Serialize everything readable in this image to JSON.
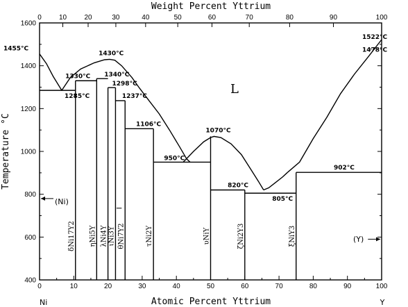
{
  "chart_data": {
    "type": "line",
    "title": "",
    "xlabel": "Atomic Percent Yttrium",
    "x2label": "Weight Percent Yttrium",
    "ylabel": "Temperature °C",
    "xlim": [
      0,
      100
    ],
    "ylim": [
      400,
      1600
    ],
    "x_ticks": [
      0,
      10,
      20,
      30,
      40,
      50,
      60,
      70,
      80,
      90,
      100
    ],
    "y_ticks": [
      400,
      600,
      800,
      1000,
      1200,
      1400,
      1600
    ],
    "weight_ticks": [
      0,
      10,
      20,
      30,
      40,
      50,
      60,
      70,
      80,
      90,
      100
    ],
    "weight_to_atomic": [
      0,
      6.8,
      14.2,
      22.3,
      31.0,
      40.4,
      50.4,
      61.3,
      73.1,
      85.9,
      100
    ],
    "end_labels": {
      "left": "Ni",
      "right": "Y"
    },
    "region_label": "L",
    "liquidus": [
      [
        [
          0,
          1455
        ],
        [
          2,
          1410
        ],
        [
          4,
          1350
        ],
        [
          6.5,
          1285
        ]
      ],
      [
        [
          6.5,
          1285
        ],
        [
          9,
          1345
        ],
        [
          12,
          1385
        ],
        [
          16,
          1414
        ],
        [
          19,
          1428
        ],
        [
          20.5,
          1430
        ],
        [
          22,
          1426
        ],
        [
          24,
          1400
        ],
        [
          27,
          1345
        ],
        [
          29,
          1300
        ],
        [
          32,
          1237
        ],
        [
          35,
          1175
        ],
        [
          38,
          1100
        ],
        [
          41,
          1020
        ],
        [
          43,
          965
        ],
        [
          44,
          950
        ]
      ],
      [
        [
          42,
          950
        ],
        [
          45,
          1000
        ],
        [
          48,
          1045
        ],
        [
          50,
          1065
        ],
        [
          51,
          1070
        ],
        [
          53,
          1065
        ],
        [
          56,
          1035
        ],
        [
          59,
          985
        ],
        [
          62,
          910
        ],
        [
          64,
          860
        ],
        [
          65.5,
          820
        ]
      ],
      [
        [
          65.5,
          820
        ],
        [
          67,
          830
        ],
        [
          69,
          855
        ],
        [
          71,
          880
        ],
        [
          72.5,
          902
        ]
      ],
      [
        [
          72.5,
          902
        ],
        [
          76,
          950
        ],
        [
          80,
          1060
        ],
        [
          84,
          1160
        ],
        [
          88,
          1270
        ],
        [
          92,
          1360
        ],
        [
          96,
          1440
        ],
        [
          100,
          1522
        ]
      ]
    ],
    "eutectics": [
      {
        "x": [
          0,
          10.5
        ],
        "y": 1285
      },
      {
        "x": [
          10.5,
          16.7
        ],
        "y": 1330
      },
      {
        "x": [
          16.7,
          20
        ],
        "y": 1340
      },
      {
        "x": [
          20,
          22.2
        ],
        "y": 1298
      },
      {
        "x": [
          22.2,
          25
        ],
        "y": 1237
      },
      {
        "x": [
          25,
          33.3
        ],
        "y": 1106
      },
      {
        "x": [
          33.3,
          50
        ],
        "y": 950
      },
      {
        "x": [
          50,
          60
        ],
        "y": 820
      },
      {
        "x": [
          60,
          75
        ],
        "y": 805
      },
      {
        "x": [
          75,
          100
        ],
        "y": 902
      }
    ],
    "compounds": [
      {
        "x": 10.5,
        "top": 1330,
        "label": "δNi17Y2"
      },
      {
        "x": 16.7,
        "top": 1340,
        "label": "ηNi5Y"
      },
      {
        "x": 20,
        "top": 1298,
        "label": "λNi4Y"
      },
      {
        "x": 22.2,
        "top": 1298,
        "label": "ιNi3Y"
      },
      {
        "x": 25,
        "top": 1237,
        "label": "θNi7Y2"
      },
      {
        "x": 33.3,
        "top": 1106,
        "label": "τNi2Y"
      },
      {
        "x": 50,
        "top": 1070,
        "label": "υNiY"
      },
      {
        "x": 60,
        "top": 820,
        "label": "ζNi2Y3"
      },
      {
        "x": 75,
        "top": 902,
        "label": "ξNiY3"
      }
    ],
    "temperature_labels": [
      {
        "text": "1455°C",
        "x": 0,
        "y": 1455
      },
      {
        "text": "1285°C",
        "x": 6.5,
        "y": 1285
      },
      {
        "text": "1330°C",
        "x": 13,
        "y": 1330
      },
      {
        "text": "1430°C",
        "x": 20.5,
        "y": 1430
      },
      {
        "text": "1340°C",
        "x": 18.5,
        "y": 1340
      },
      {
        "text": "1298°C",
        "x": 21,
        "y": 1298
      },
      {
        "text": "1237°C",
        "x": 23.5,
        "y": 1237
      },
      {
        "text": "1106°C",
        "x": 29,
        "y": 1106
      },
      {
        "text": "950°C",
        "x": 38,
        "y": 950
      },
      {
        "text": "1070°C",
        "x": 51,
        "y": 1070
      },
      {
        "text": "820°C",
        "x": 55,
        "y": 820
      },
      {
        "text": "805°C",
        "x": 68,
        "y": 805
      },
      {
        "text": "902°C",
        "x": 86,
        "y": 902
      },
      {
        "text": "1522°C",
        "x": 100,
        "y": 1522
      },
      {
        "text": "1478°C",
        "x": 100,
        "y": 1478
      }
    ],
    "ni_label": "(Ni)",
    "y_label": "(Y)",
    "ni_transition_temp": 1478
  }
}
